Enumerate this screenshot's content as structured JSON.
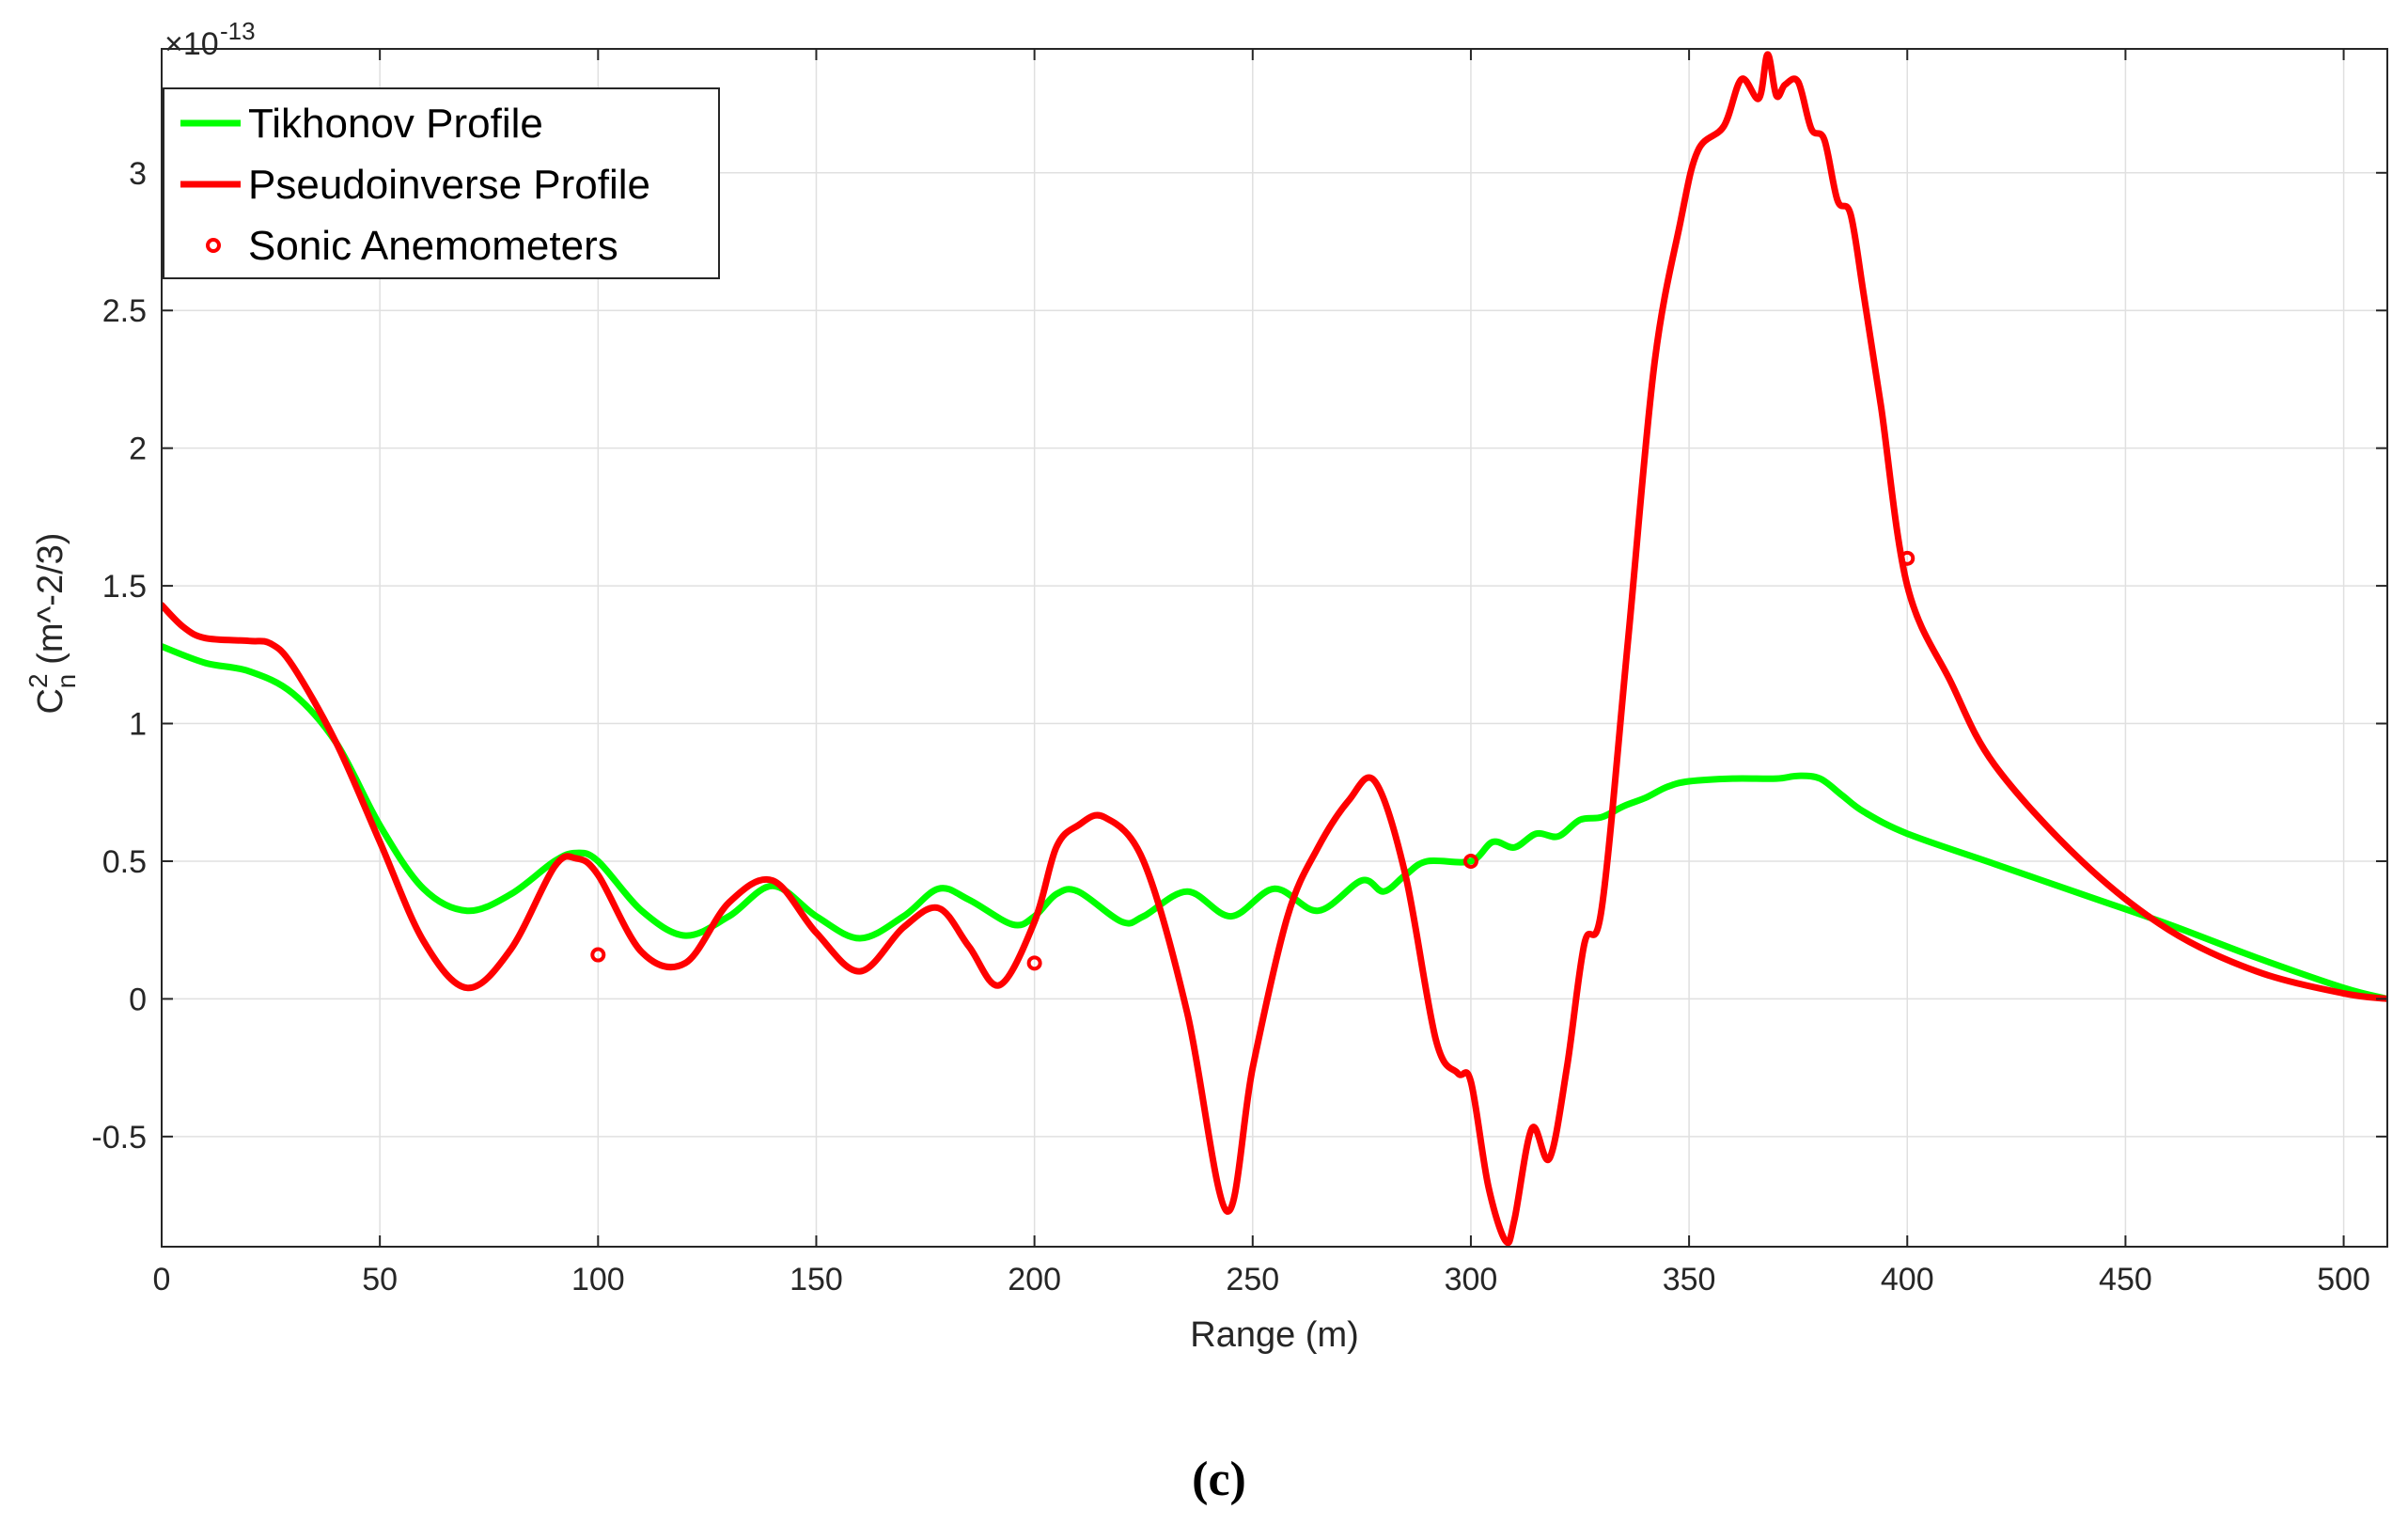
{
  "chart_data": {
    "type": "line",
    "xlabel": "Range (m)",
    "ylabel": {
      "base": "C",
      "sup": "2",
      "sub": "n",
      "rest": "(m^-2/3)"
    },
    "y_exponent": "-13",
    "xlim": [
      0,
      510
    ],
    "ylim": [
      -0.9,
      3.45
    ],
    "x_ticks": [
      0,
      50,
      100,
      150,
      200,
      250,
      300,
      350,
      400,
      450,
      500
    ],
    "y_ticks": [
      -0.5,
      0,
      0.5,
      1,
      1.5,
      2,
      2.5,
      3
    ],
    "x_tick_labels": [
      "0",
      "50",
      "100",
      "150",
      "200",
      "250",
      "300",
      "350",
      "400",
      "450",
      "500"
    ],
    "y_tick_labels": [
      "-0.5",
      "0",
      "0.5",
      "1",
      "1.5",
      "2",
      "2.5",
      "3"
    ],
    "grid": true,
    "legend_position": "top-left",
    "caption": "(c)",
    "series": [
      {
        "name": "Tikhonov Profile",
        "color": "#00ff00",
        "style": "line",
        "x": [
          0,
          10,
          20,
          30,
          40,
          50,
          60,
          70,
          80,
          90,
          95,
          100,
          110,
          120,
          130,
          140,
          150,
          160,
          170,
          178,
          185,
          195,
          200,
          205,
          210,
          220,
          225,
          235,
          245,
          255,
          265,
          275,
          280,
          285,
          290,
          300,
          305,
          310,
          315,
          320,
          325,
          330,
          335,
          340,
          345,
          350,
          360,
          370,
          375,
          380,
          385,
          390,
          400,
          420,
          440,
          460,
          480,
          500,
          510
        ],
        "y": [
          1.28,
          1.22,
          1.19,
          1.11,
          0.93,
          0.63,
          0.4,
          0.32,
          0.38,
          0.5,
          0.53,
          0.5,
          0.32,
          0.23,
          0.3,
          0.41,
          0.3,
          0.22,
          0.3,
          0.4,
          0.36,
          0.27,
          0.3,
          0.38,
          0.39,
          0.28,
          0.3,
          0.39,
          0.3,
          0.4,
          0.32,
          0.43,
          0.39,
          0.45,
          0.5,
          0.5,
          0.57,
          0.55,
          0.6,
          0.59,
          0.65,
          0.66,
          0.7,
          0.73,
          0.77,
          0.79,
          0.8,
          0.8,
          0.81,
          0.8,
          0.74,
          0.68,
          0.6,
          0.49,
          0.38,
          0.27,
          0.15,
          0.04,
          0.0
        ]
      },
      {
        "name": "Pseudoinverse Profile",
        "color": "#ff0000",
        "style": "line",
        "x": [
          0,
          5,
          10,
          20,
          25,
          30,
          40,
          50,
          60,
          70,
          80,
          90,
          95,
          100,
          110,
          120,
          130,
          140,
          150,
          160,
          170,
          178,
          185,
          192,
          200,
          205,
          210,
          216,
          225,
          235,
          244,
          250,
          258,
          265,
          272,
          278,
          285,
          292,
          297,
          300,
          304,
          308,
          310,
          314,
          318,
          322,
          326,
          330,
          336,
          342,
          348,
          352,
          358,
          362,
          366,
          368,
          370,
          372,
          375,
          378,
          381,
          384,
          387,
          390,
          394,
          400,
          410,
          420,
          440,
          460,
          480,
          500,
          510
        ],
        "y": [
          1.43,
          1.35,
          1.31,
          1.3,
          1.29,
          1.21,
          0.93,
          0.57,
          0.21,
          0.04,
          0.18,
          0.48,
          0.51,
          0.45,
          0.17,
          0.13,
          0.35,
          0.43,
          0.24,
          0.1,
          0.26,
          0.33,
          0.19,
          0.05,
          0.28,
          0.55,
          0.63,
          0.66,
          0.5,
          -0.05,
          -0.77,
          -0.25,
          0.3,
          0.55,
          0.72,
          0.79,
          0.45,
          -0.15,
          -0.27,
          -0.3,
          -0.68,
          -0.88,
          -0.8,
          -0.47,
          -0.58,
          -0.25,
          0.2,
          0.33,
          1.3,
          2.3,
          2.82,
          3.08,
          3.17,
          3.34,
          3.27,
          3.43,
          3.28,
          3.32,
          3.33,
          3.16,
          3.12,
          2.9,
          2.85,
          2.56,
          2.15,
          1.5,
          1.15,
          0.85,
          0.5,
          0.25,
          0.1,
          0.02,
          0.0
        ]
      },
      {
        "name": "Sonic Anemometers",
        "color": "#ff0000",
        "style": "marker",
        "x": [
          100,
          200,
          300,
          400
        ],
        "y": [
          0.16,
          0.13,
          0.5,
          1.6
        ]
      }
    ]
  }
}
